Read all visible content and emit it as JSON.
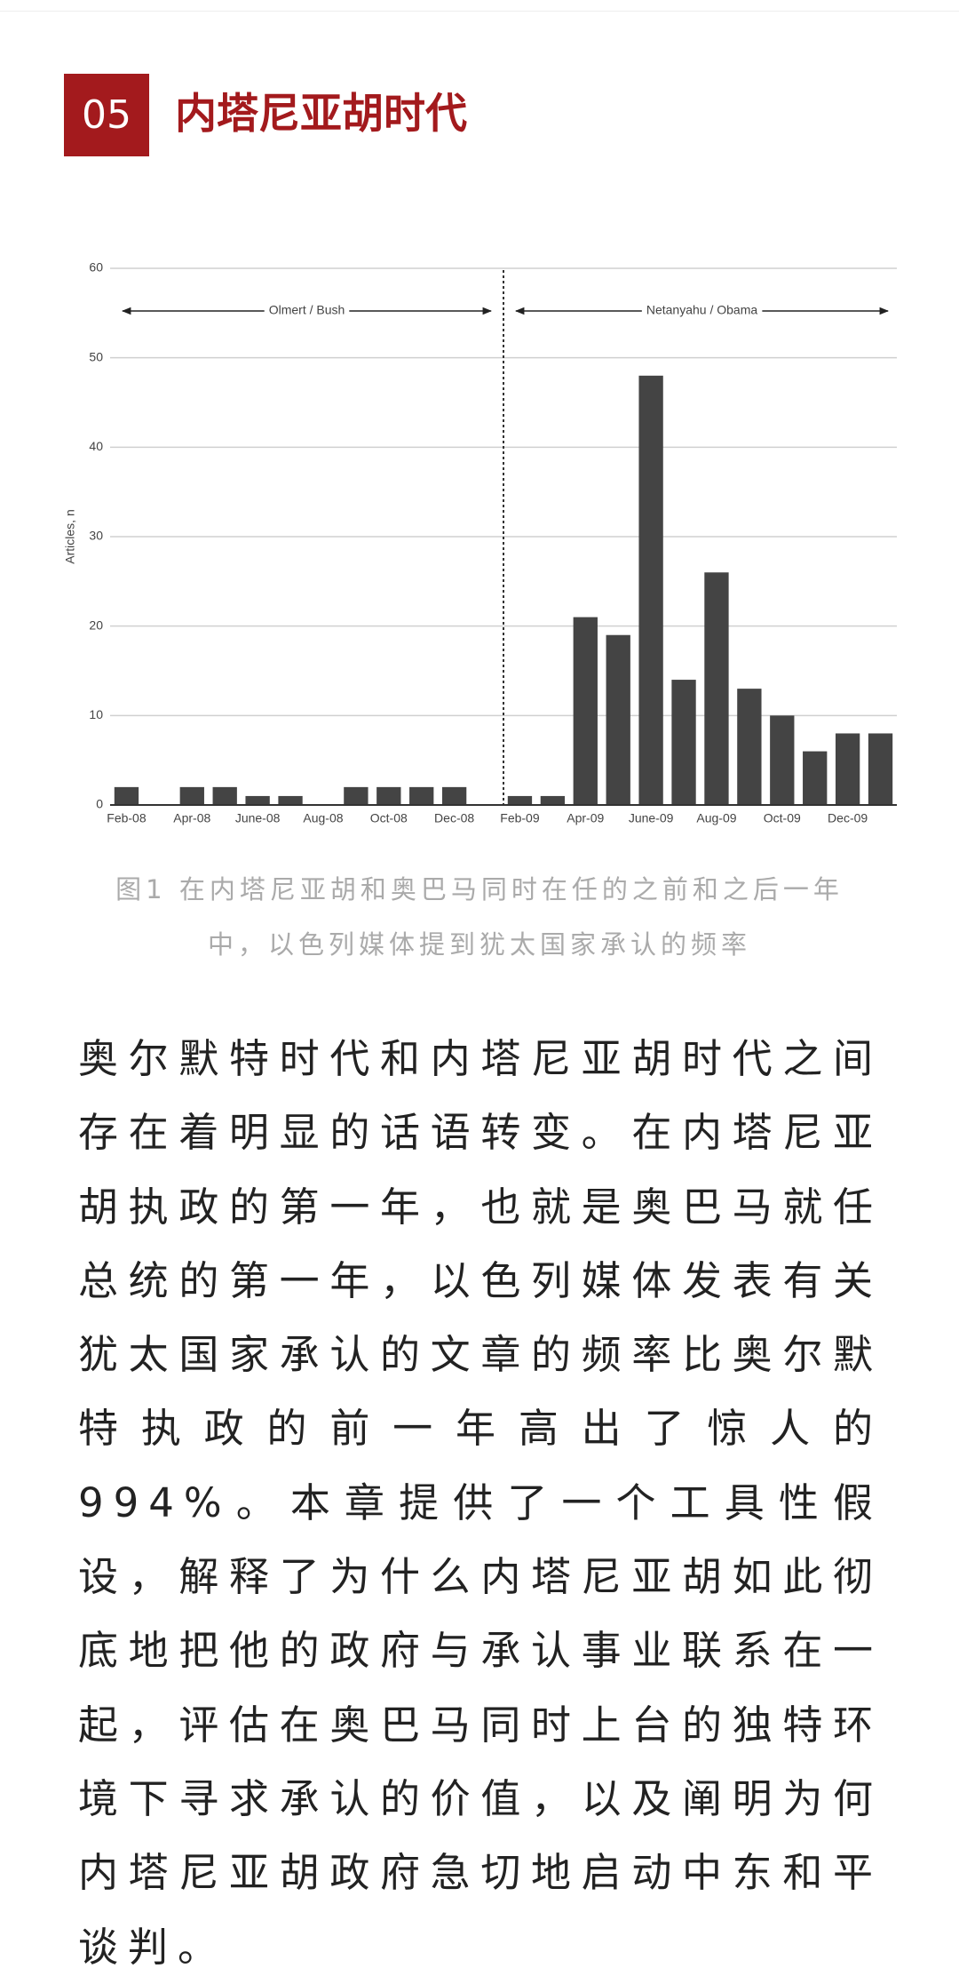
{
  "header": {
    "number": "05",
    "title": "内塔尼亚胡时代"
  },
  "chart_data": {
    "type": "bar",
    "categories": [
      "Feb-08",
      null,
      "Apr-08",
      null,
      "June-08",
      null,
      "Aug-08",
      null,
      "Oct-08",
      null,
      "Dec-08",
      null,
      "Feb-09",
      null,
      "Apr-09",
      null,
      "June-09",
      null,
      "Aug-09",
      null,
      "Oct-09",
      null,
      "Dec-09",
      null
    ],
    "values": [
      2,
      0,
      2,
      2,
      1,
      1,
      0,
      2,
      2,
      2,
      2,
      0,
      1,
      1,
      21,
      19,
      48,
      14,
      26,
      13,
      10,
      6,
      8,
      8
    ],
    "color": "#444444",
    "ylabel": "Articles, n",
    "ylim": [
      0,
      60
    ],
    "yticks": [
      0,
      10,
      20,
      30,
      40,
      50,
      60
    ],
    "grid": true,
    "annotations": [
      "Olmert / Bush",
      "Netanyahu / Obama"
    ]
  },
  "caption": "图1 在内塔尼亚胡和奥巴马同时在任的之前和之后一年中，以色列媒体提到犹太国家承认的频率",
  "paragraph": "奥尔默特时代和内塔尼亚胡时代之间存在着明显的话语转变。在内塔尼亚胡执政的第一年，也就是奥巴马就任总统的第一年，以色列媒体发表有关犹太国家承认的文章的频率比奥尔默特执政的前一年高出了惊人的994%。本章提供了一个工具性假设，解释了为什么内塔尼亚胡如此彻底地把他的政府与承认事业联系在一起，评估在奥巴马同时上台的独特环境下寻求承认的价值，以及阐明为何内塔尼亚胡政府急切地启动中东和平谈判。"
}
